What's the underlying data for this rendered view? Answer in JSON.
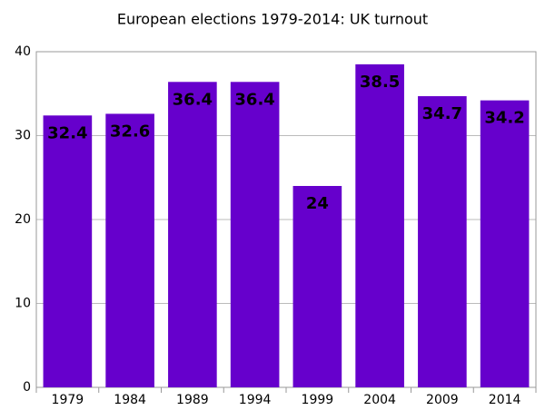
{
  "chart_data": {
    "type": "bar",
    "title": "European elections 1979-2014: UK turnout",
    "categories": [
      "1979",
      "1984",
      "1989",
      "1994",
      "1999",
      "2004",
      "2009",
      "2014"
    ],
    "values": [
      32.4,
      32.6,
      36.4,
      36.4,
      24,
      38.5,
      34.7,
      34.2
    ],
    "color": "#6600cc",
    "ylim": [
      0,
      40
    ],
    "yticks": [
      0,
      10,
      20,
      30,
      40
    ],
    "grid": true
  }
}
